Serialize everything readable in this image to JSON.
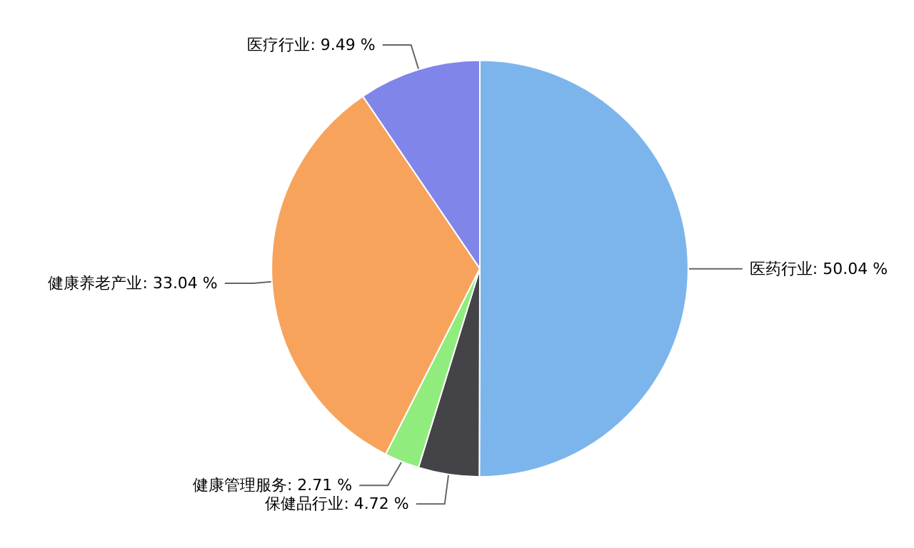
{
  "chart_data": {
    "type": "pie",
    "categories": [
      "医药行业",
      "保健品行业",
      "健康管理服务",
      "健康养老产业",
      "医疗行业"
    ],
    "values": [
      50.04,
      4.72,
      2.71,
      33.04,
      9.49
    ],
    "colors": [
      "#7cb5ec",
      "#434348",
      "#90ed7d",
      "#f7a35c",
      "#8085e9"
    ],
    "value_labels": [
      "50.04 %",
      "4.72 %",
      "2.71 %",
      "33.04 %",
      "9.49 %"
    ],
    "legend": false
  }
}
